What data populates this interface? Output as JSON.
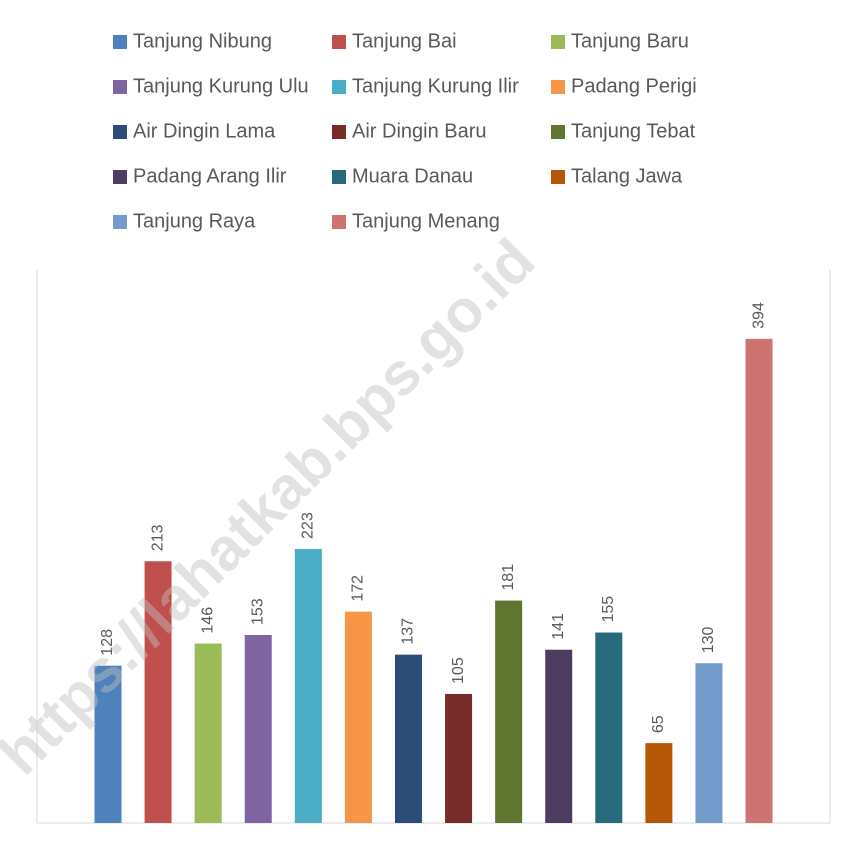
{
  "chart_data": {
    "type": "bar",
    "watermark": "https://lahatkab.bps.go.id",
    "ylim": [
      0,
      450
    ],
    "series": [
      {
        "name": "Tanjung Nibung",
        "color": "#4F81BD",
        "values": [
          128
        ]
      },
      {
        "name": "Tanjung Bai",
        "color": "#C0504D",
        "values": [
          213
        ]
      },
      {
        "name": "Tanjung Baru",
        "color": "#9BBB59",
        "values": [
          146
        ]
      },
      {
        "name": "Tanjung Kurung Ulu",
        "color": "#8064A2",
        "values": [
          153
        ]
      },
      {
        "name": "Tanjung Kurung Ilir",
        "color": "#4BACC6",
        "values": [
          223
        ]
      },
      {
        "name": "Padang Perigi",
        "color": "#F79646",
        "values": [
          172
        ]
      },
      {
        "name": "Air Dingin Lama",
        "color": "#2C4D75",
        "values": [
          137
        ]
      },
      {
        "name": "Air Dingin Baru",
        "color": "#772C2A",
        "values": [
          105
        ]
      },
      {
        "name": "Tanjung Tebat",
        "color": "#5F7530",
        "values": [
          181
        ]
      },
      {
        "name": "Padang Arang Ilir",
        "color": "#4D3B62",
        "values": [
          141
        ]
      },
      {
        "name": "Muara Danau",
        "color": "#276A7C",
        "values": [
          155
        ]
      },
      {
        "name": "Talang Jawa",
        "color": "#B65708",
        "values": [
          65
        ]
      },
      {
        "name": "Tanjung Raya",
        "color": "#729ACA",
        "values": [
          130
        ]
      },
      {
        "name": "Tanjung Menang",
        "color": "#CD7371",
        "values": [
          394
        ]
      }
    ]
  }
}
